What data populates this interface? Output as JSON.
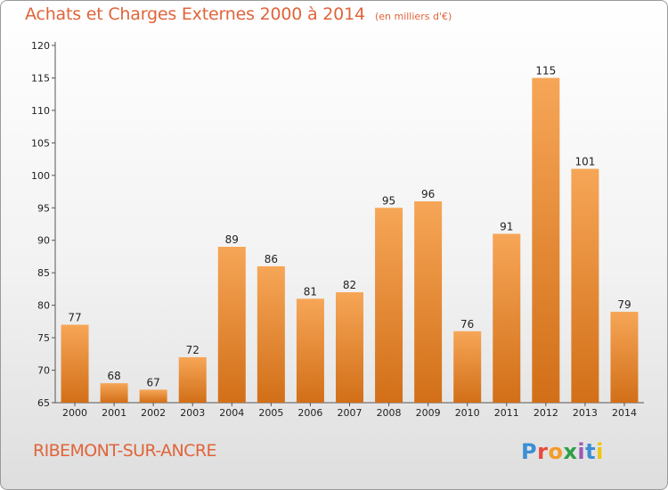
{
  "header": {
    "title": "Achats et Charges Externes 2000 à 2014",
    "subtitle": "(en milliers d'€)"
  },
  "footer": {
    "place": "RIBEMONT-SUR-ANCRE",
    "logo_text": "Proxiti",
    "logo_colors": [
      "#3b8fd4",
      "#e8493a",
      "#f39c26",
      "#2e9e47",
      "#9b59b6",
      "#3b8fd4",
      "#f1c40f"
    ]
  },
  "colors": {
    "bar_top": "#f6a657",
    "bar_bottom": "#d26f18",
    "accent_text": "#e0643a"
  },
  "chart_data": {
    "type": "bar",
    "title": "Achats et Charges Externes 2000 à 2014",
    "subtitle": "(en milliers d'€)",
    "categories": [
      "2000",
      "2001",
      "2002",
      "2003",
      "2004",
      "2005",
      "2006",
      "2007",
      "2008",
      "2009",
      "2010",
      "2011",
      "2012",
      "2013",
      "2014"
    ],
    "values": [
      77,
      68,
      67,
      72,
      89,
      86,
      81,
      82,
      95,
      96,
      76,
      91,
      115,
      101,
      79
    ],
    "ylim": [
      65,
      120
    ],
    "yticks": [
      65,
      70,
      75,
      80,
      85,
      90,
      95,
      100,
      105,
      110,
      115,
      120
    ],
    "data_labels": true,
    "grid": false,
    "legend": "none"
  }
}
